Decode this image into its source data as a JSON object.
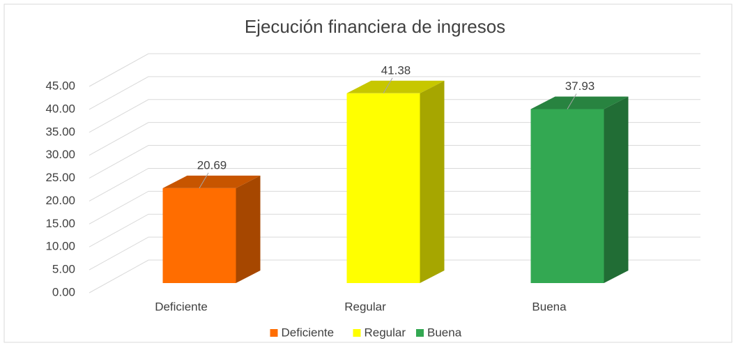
{
  "chart_data": {
    "type": "bar",
    "title": "Ejecución financiera de ingresos",
    "categories": [
      "Deficiente",
      "Regular",
      "Buena"
    ],
    "values": [
      20.69,
      41.38,
      37.93
    ],
    "colors": [
      "#ff6d00",
      "#ffff00",
      "#33a852"
    ],
    "ylim": [
      0,
      45
    ],
    "yticks": [
      {
        "value": 0,
        "label": "0.00"
      },
      {
        "value": 5,
        "label": "5.00"
      },
      {
        "value": 10,
        "label": "10.00"
      },
      {
        "value": 15,
        "label": "15.00"
      },
      {
        "value": 20,
        "label": "20.00"
      },
      {
        "value": 25,
        "label": "25.00"
      },
      {
        "value": 30,
        "label": "30.00"
      },
      {
        "value": 35,
        "label": "35.00"
      },
      {
        "value": 40,
        "label": "40.00"
      },
      {
        "value": 45,
        "label": "45.00"
      }
    ],
    "grid": true,
    "legend": "bottom"
  }
}
